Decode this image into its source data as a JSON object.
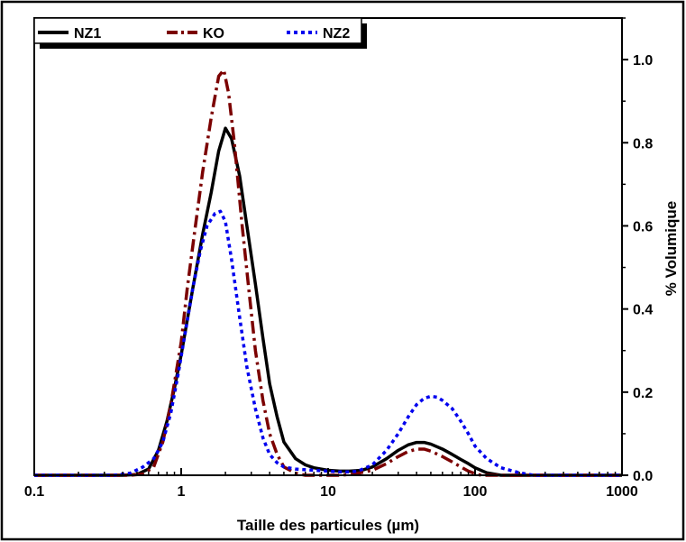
{
  "chart_data": {
    "type": "line",
    "title": "",
    "xlabel": "Taille des particules (µm)",
    "ylabel": "% Volumique",
    "xscale": "log",
    "xlim": [
      0.1,
      1000
    ],
    "ylim": [
      0,
      1.1
    ],
    "x_ticks": [
      "0.1",
      "1",
      "10",
      "100",
      "1000"
    ],
    "y_ticks": [
      "0.0",
      "0.2",
      "0.4",
      "0.6",
      "0.8",
      "1.0"
    ],
    "y_axis_side": "right",
    "grid": false,
    "legend_position": "top-left",
    "series": [
      {
        "name": "NZ1",
        "color": "#000000",
        "dash": "solid",
        "points": [
          [
            0.1,
            0
          ],
          [
            0.4,
            0
          ],
          [
            0.5,
            0.002
          ],
          [
            0.6,
            0.015
          ],
          [
            0.7,
            0.06
          ],
          [
            0.8,
            0.13
          ],
          [
            0.9,
            0.21
          ],
          [
            1.0,
            0.29
          ],
          [
            1.2,
            0.45
          ],
          [
            1.4,
            0.58
          ],
          [
            1.6,
            0.68
          ],
          [
            1.8,
            0.78
          ],
          [
            2.0,
            0.835
          ],
          [
            2.2,
            0.81
          ],
          [
            2.5,
            0.72
          ],
          [
            2.8,
            0.6
          ],
          [
            3.2,
            0.46
          ],
          [
            3.6,
            0.33
          ],
          [
            4.0,
            0.22
          ],
          [
            4.5,
            0.14
          ],
          [
            5.0,
            0.08
          ],
          [
            6.0,
            0.04
          ],
          [
            7.0,
            0.025
          ],
          [
            8.0,
            0.018
          ],
          [
            10,
            0.012
          ],
          [
            12,
            0.01
          ],
          [
            14,
            0.01
          ],
          [
            17,
            0.012
          ],
          [
            20,
            0.02
          ],
          [
            25,
            0.04
          ],
          [
            30,
            0.06
          ],
          [
            35,
            0.073
          ],
          [
            40,
            0.079
          ],
          [
            45,
            0.079
          ],
          [
            50,
            0.075
          ],
          [
            60,
            0.063
          ],
          [
            70,
            0.05
          ],
          [
            80,
            0.038
          ],
          [
            90,
            0.028
          ],
          [
            100,
            0.018
          ],
          [
            120,
            0.006
          ],
          [
            150,
            0
          ],
          [
            1000,
            0
          ]
        ]
      },
      {
        "name": "KO",
        "color": "#7b0000",
        "dash": "dashdot",
        "points": [
          [
            0.1,
            0
          ],
          [
            0.45,
            0
          ],
          [
            0.55,
            0.003
          ],
          [
            0.65,
            0.02
          ],
          [
            0.75,
            0.08
          ],
          [
            0.85,
            0.17
          ],
          [
            1.0,
            0.32
          ],
          [
            1.1,
            0.45
          ],
          [
            1.25,
            0.6
          ],
          [
            1.4,
            0.73
          ],
          [
            1.6,
            0.86
          ],
          [
            1.8,
            0.96
          ],
          [
            1.95,
            0.975
          ],
          [
            2.1,
            0.92
          ],
          [
            2.3,
            0.8
          ],
          [
            2.6,
            0.6
          ],
          [
            2.9,
            0.44
          ],
          [
            3.2,
            0.3
          ],
          [
            3.6,
            0.18
          ],
          [
            4.0,
            0.1
          ],
          [
            4.5,
            0.05
          ],
          [
            5.0,
            0.02
          ],
          [
            6.0,
            0.005
          ],
          [
            7.0,
            0
          ],
          [
            12,
            0
          ],
          [
            15,
            0.003
          ],
          [
            20,
            0.012
          ],
          [
            25,
            0.028
          ],
          [
            30,
            0.045
          ],
          [
            35,
            0.057
          ],
          [
            40,
            0.063
          ],
          [
            45,
            0.063
          ],
          [
            50,
            0.058
          ],
          [
            60,
            0.045
          ],
          [
            70,
            0.032
          ],
          [
            80,
            0.02
          ],
          [
            90,
            0.01
          ],
          [
            100,
            0.004
          ],
          [
            110,
            0
          ],
          [
            1000,
            0
          ]
        ]
      },
      {
        "name": "NZ2",
        "color": "#0000ee",
        "dash": "dot",
        "points": [
          [
            0.1,
            0
          ],
          [
            0.35,
            0
          ],
          [
            0.45,
            0.005
          ],
          [
            0.55,
            0.02
          ],
          [
            0.65,
            0.04
          ],
          [
            0.75,
            0.08
          ],
          [
            0.85,
            0.15
          ],
          [
            0.95,
            0.24
          ],
          [
            1.05,
            0.33
          ],
          [
            1.2,
            0.45
          ],
          [
            1.35,
            0.54
          ],
          [
            1.5,
            0.6
          ],
          [
            1.7,
            0.63
          ],
          [
            1.85,
            0.635
          ],
          [
            2.0,
            0.61
          ],
          [
            2.2,
            0.52
          ],
          [
            2.5,
            0.38
          ],
          [
            2.8,
            0.26
          ],
          [
            3.2,
            0.16
          ],
          [
            3.6,
            0.09
          ],
          [
            4.0,
            0.05
          ],
          [
            4.5,
            0.03
          ],
          [
            5.0,
            0.02
          ],
          [
            6.0,
            0.015
          ],
          [
            8.0,
            0.012
          ],
          [
            10,
            0.01
          ],
          [
            12,
            0.008
          ],
          [
            14,
            0.008
          ],
          [
            16,
            0.01
          ],
          [
            20,
            0.025
          ],
          [
            25,
            0.06
          ],
          [
            30,
            0.1
          ],
          [
            35,
            0.14
          ],
          [
            40,
            0.17
          ],
          [
            45,
            0.185
          ],
          [
            50,
            0.19
          ],
          [
            55,
            0.188
          ],
          [
            60,
            0.18
          ],
          [
            70,
            0.16
          ],
          [
            80,
            0.13
          ],
          [
            90,
            0.1
          ],
          [
            100,
            0.07
          ],
          [
            120,
            0.04
          ],
          [
            150,
            0.018
          ],
          [
            200,
            0.006
          ],
          [
            250,
            0
          ],
          [
            1000,
            0
          ]
        ]
      }
    ]
  }
}
